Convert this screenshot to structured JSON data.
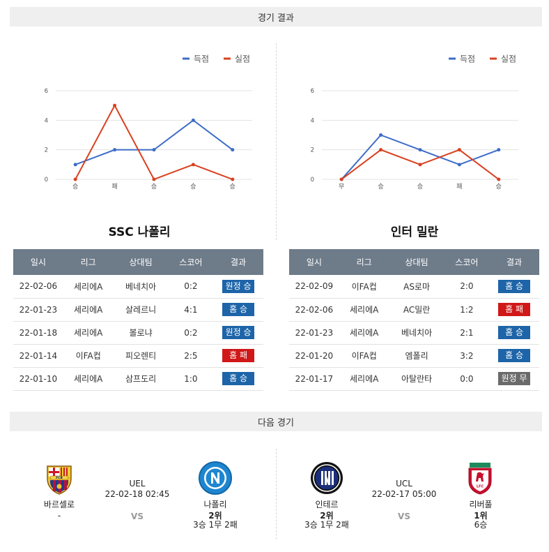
{
  "sections": {
    "results_title": "경기 결과",
    "next_title": "다음 경기"
  },
  "legend": {
    "scored": "득점",
    "conceded": "실점"
  },
  "colors": {
    "scored": "#3c6cc8",
    "conceded": "#d9401f",
    "win": "#1d64a8",
    "loss": "#d01818",
    "draw": "#6a6a6a"
  },
  "left": {
    "team": "SSC 나폴리",
    "chart_data": {
      "type": "line",
      "categories": [
        "승",
        "패",
        "승",
        "승",
        "승"
      ],
      "ylim": [
        0,
        6
      ],
      "yticks": [
        0,
        2,
        4,
        6
      ],
      "series": [
        {
          "name": "득점",
          "values": [
            1,
            2,
            2,
            4,
            2
          ]
        },
        {
          "name": "실점",
          "values": [
            0,
            5,
            0,
            1,
            0
          ]
        }
      ]
    },
    "headers": [
      "일시",
      "리그",
      "상대팀",
      "스코어",
      "결과"
    ],
    "rows": [
      {
        "date": "22-02-06",
        "league": "세리에A",
        "opponent": "베네치아",
        "score": "0:2",
        "result": "원정 승",
        "status": "win"
      },
      {
        "date": "22-01-23",
        "league": "세리에A",
        "opponent": "살레르니",
        "score": "4:1",
        "result": "홈 승",
        "status": "win"
      },
      {
        "date": "22-01-18",
        "league": "세리에A",
        "opponent": "볼로냐",
        "score": "0:2",
        "result": "원정 승",
        "status": "win"
      },
      {
        "date": "22-01-14",
        "league": "이FA컵",
        "opponent": "피오렌티",
        "score": "2:5",
        "result": "홈 패",
        "status": "loss"
      },
      {
        "date": "22-01-10",
        "league": "세리에A",
        "opponent": "삼프도리",
        "score": "1:0",
        "result": "홈 승",
        "status": "win"
      }
    ]
  },
  "right": {
    "team": "인터 밀란",
    "chart_data": {
      "type": "line",
      "categories": [
        "무",
        "승",
        "승",
        "패",
        "승"
      ],
      "ylim": [
        0,
        6
      ],
      "yticks": [
        0,
        2,
        4,
        6
      ],
      "series": [
        {
          "name": "득점",
          "values": [
            0,
            3,
            2,
            1,
            2
          ]
        },
        {
          "name": "실점",
          "values": [
            0,
            2,
            1,
            2,
            0
          ]
        }
      ]
    },
    "headers": [
      "일시",
      "리그",
      "상대팀",
      "스코어",
      "결과"
    ],
    "rows": [
      {
        "date": "22-02-09",
        "league": "이FA컵",
        "opponent": "AS로마",
        "score": "2:0",
        "result": "홈 승",
        "status": "win"
      },
      {
        "date": "22-02-06",
        "league": "세리에A",
        "opponent": "AC밀란",
        "score": "1:2",
        "result": "홈 패",
        "status": "loss"
      },
      {
        "date": "22-01-23",
        "league": "세리에A",
        "opponent": "베네치아",
        "score": "2:1",
        "result": "홈 승",
        "status": "win"
      },
      {
        "date": "22-01-20",
        "league": "이FA컵",
        "opponent": "엠폴리",
        "score": "3:2",
        "result": "홈 승",
        "status": "win"
      },
      {
        "date": "22-01-17",
        "league": "세리에A",
        "opponent": "아탈란타",
        "score": "0:0",
        "result": "원정 무",
        "status": "draw"
      }
    ]
  },
  "next": {
    "left": {
      "home": {
        "name": "바르셀로",
        "rank": "-",
        "record": ""
      },
      "away": {
        "name": "나폴리",
        "rank": "2위",
        "record": "3승 1무 2패"
      },
      "league": "UEL",
      "datetime": "22-02-18 02:45",
      "vs": "VS"
    },
    "right": {
      "home": {
        "name": "인테르",
        "rank": "2위",
        "record": "3승 1무 2패"
      },
      "away": {
        "name": "리버풀",
        "rank": "1위",
        "record": "6승"
      },
      "league": "UCL",
      "datetime": "22-02-17 05:00",
      "vs": "VS"
    },
    "logos": {
      "barcelona": "FCB",
      "liverpool": "LFC"
    }
  }
}
